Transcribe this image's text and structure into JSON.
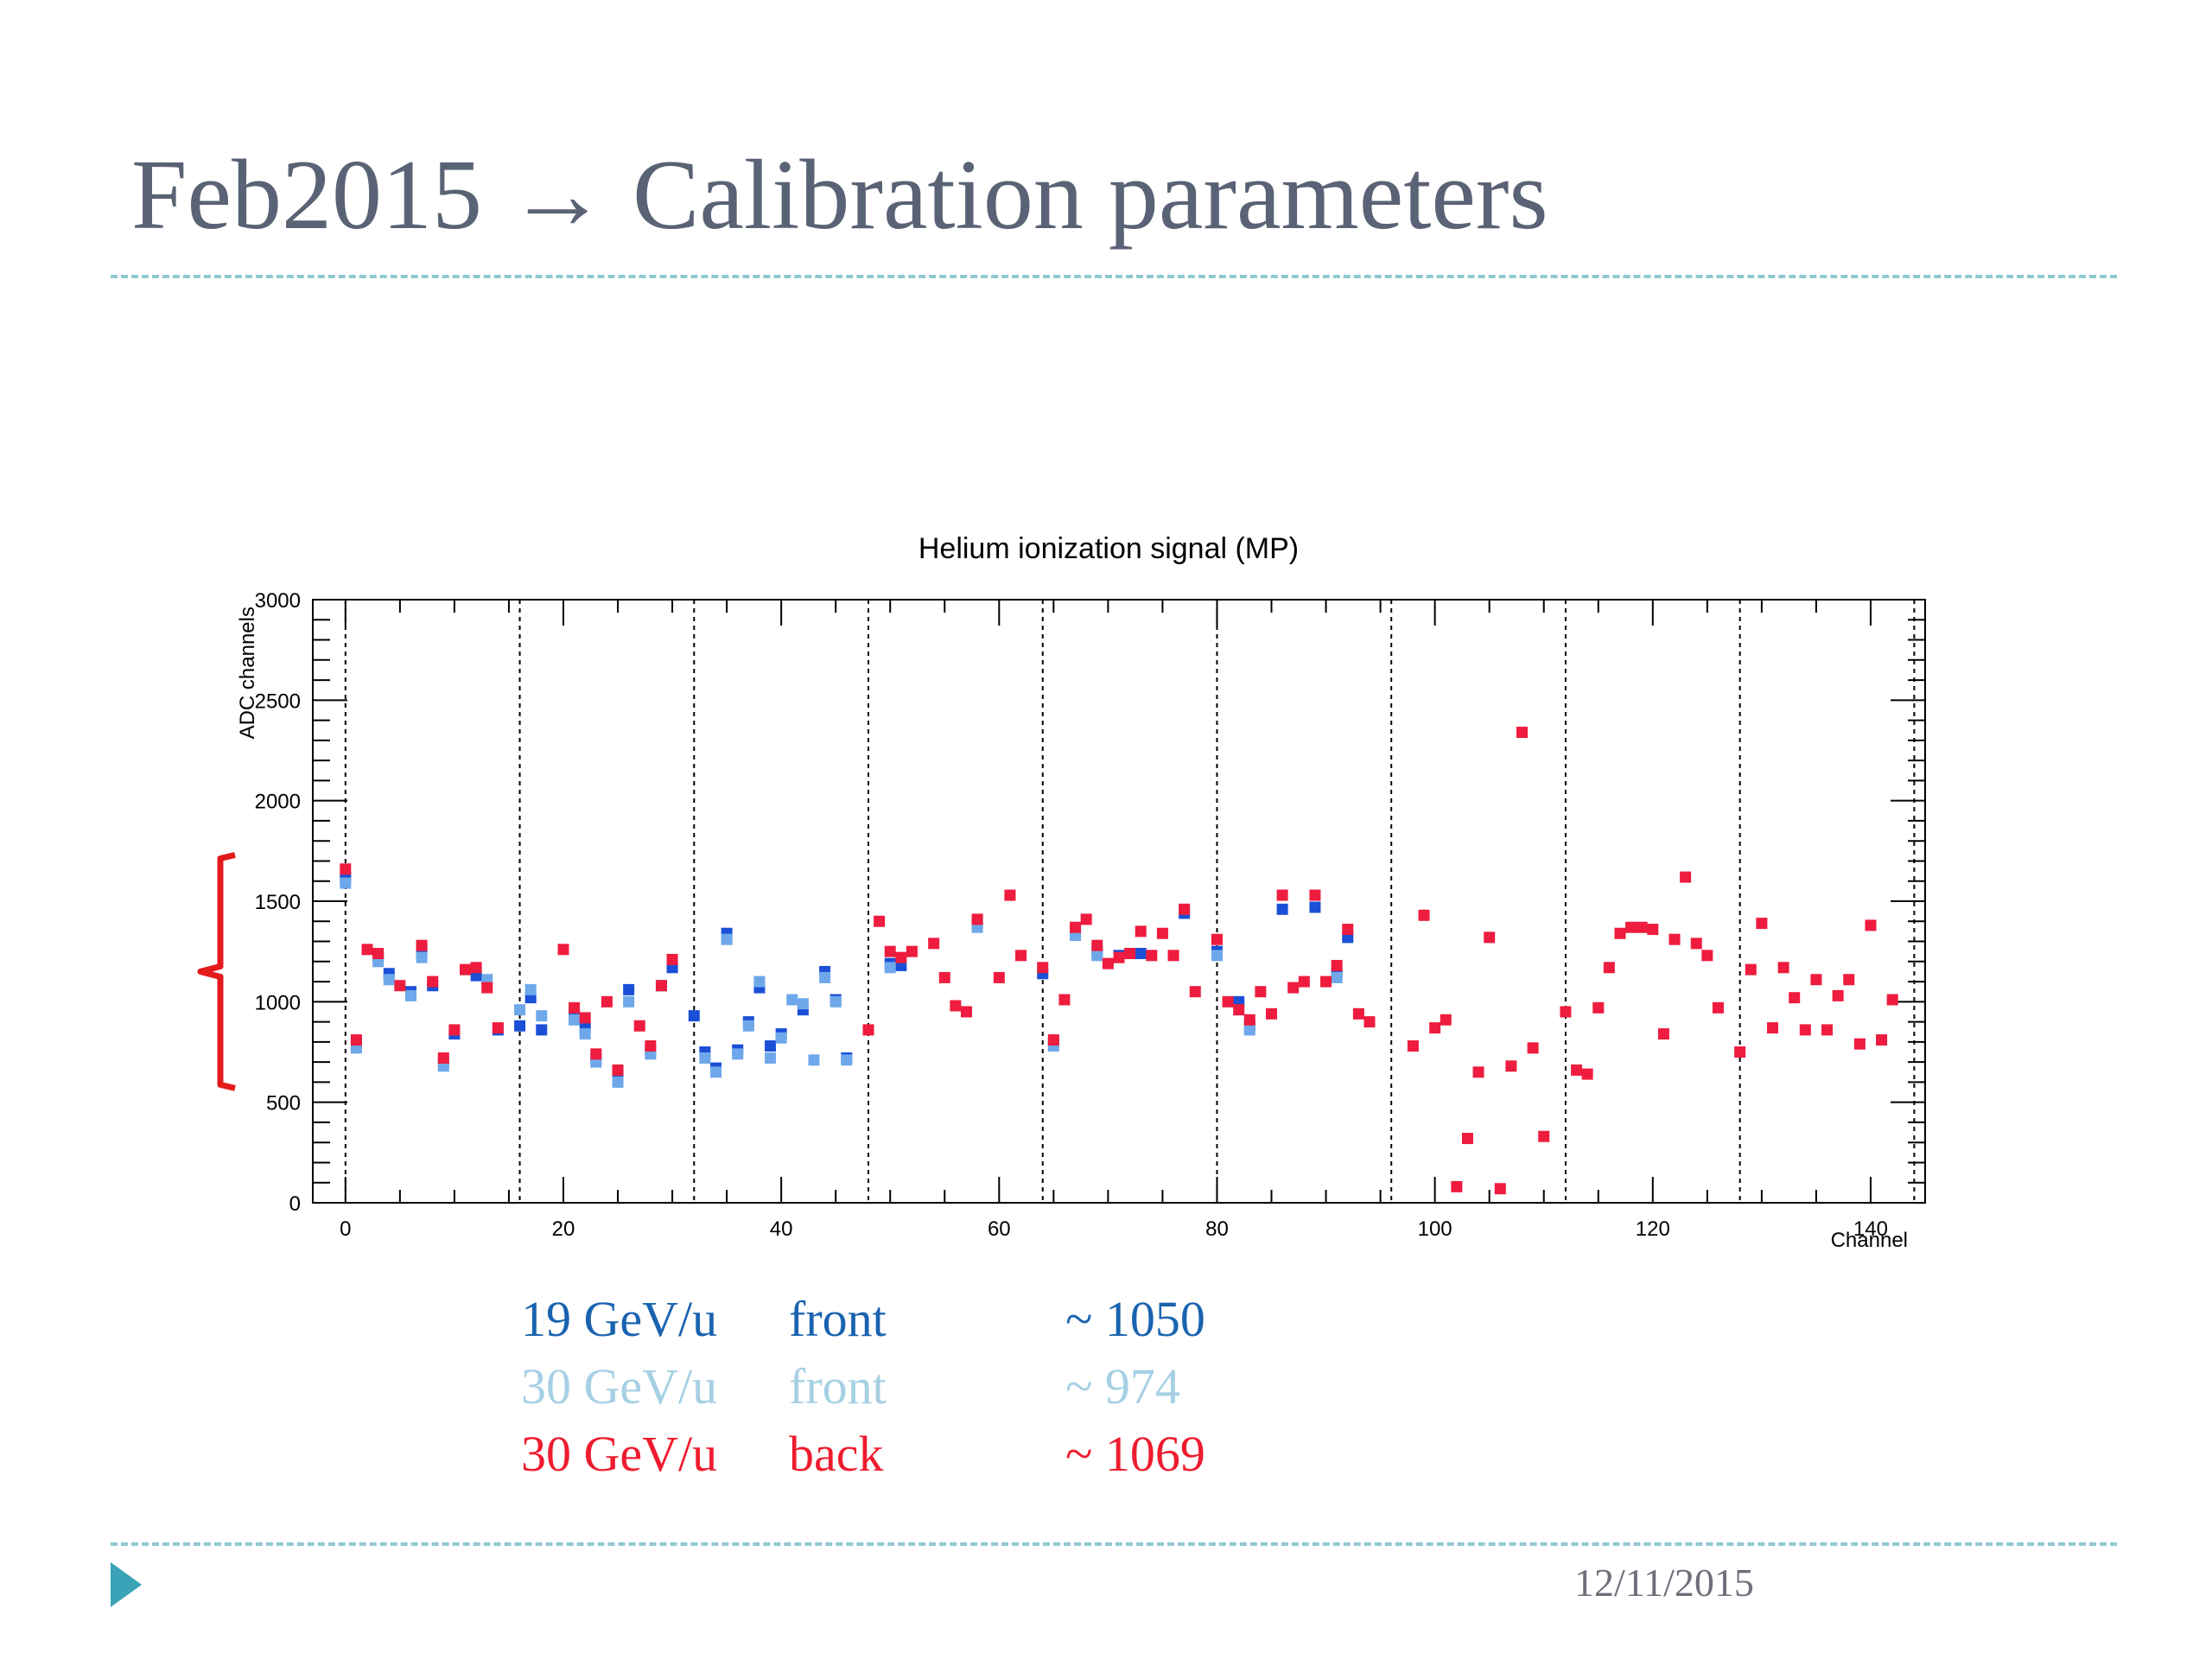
{
  "slide": {
    "title": "Feb2015 → Calibration parameters",
    "date": "12/11/2015"
  },
  "legend": [
    {
      "label": "19 GeV/u",
      "side": "front",
      "value": "~ 1050",
      "color": "#1a63b0"
    },
    {
      "label": "30 GeV/u",
      "side": "front",
      "value": "~ 974",
      "color": "#a6d0e4"
    },
    {
      "label": "30 GeV/u",
      "side": "back",
      "value": "~ 1069",
      "color": "#ee1c2e"
    }
  ],
  "chart_data": {
    "type": "scatter",
    "title": "Helium ionization signal (MP)",
    "xlabel": "Channel",
    "ylabel": "ADC channels",
    "xlim": [
      -3,
      145
    ],
    "ylim": [
      0,
      3000
    ],
    "x_ticks": [
      0,
      20,
      40,
      60,
      80,
      100,
      120,
      140
    ],
    "y_ticks": [
      0,
      500,
      1000,
      1500,
      2000,
      2500,
      3000
    ],
    "group_boundaries": [
      0,
      16,
      32,
      48,
      64,
      80,
      96,
      112,
      128,
      144
    ],
    "bracket_range": [
      570,
      1730
    ],
    "series": [
      {
        "color": "#1a4fd6",
        "points": [
          [
            0,
            1620
          ],
          [
            1,
            790
          ],
          [
            3,
            1230
          ],
          [
            4,
            1140
          ],
          [
            6,
            1050
          ],
          [
            7,
            1250
          ],
          [
            8,
            1080
          ],
          [
            9,
            700
          ],
          [
            10,
            840
          ],
          [
            12,
            1130
          ],
          [
            14,
            860
          ],
          [
            16,
            880
          ],
          [
            17,
            1020
          ],
          [
            18,
            860
          ],
          [
            21,
            940
          ],
          [
            22,
            870
          ],
          [
            23,
            720
          ],
          [
            25,
            630
          ],
          [
            26,
            1060
          ],
          [
            28,
            760
          ],
          [
            29,
            1080
          ],
          [
            30,
            1170
          ],
          [
            32,
            930
          ],
          [
            33,
            750
          ],
          [
            34,
            670
          ],
          [
            35,
            1340
          ],
          [
            36,
            760
          ],
          [
            37,
            900
          ],
          [
            38,
            1070
          ],
          [
            39,
            780
          ],
          [
            40,
            840
          ],
          [
            42,
            960
          ],
          [
            44,
            1150
          ],
          [
            45,
            1010
          ],
          [
            46,
            720
          ],
          [
            50,
            1190
          ],
          [
            51,
            1180
          ],
          [
            58,
            1390
          ],
          [
            64,
            1140
          ],
          [
            65,
            800
          ],
          [
            67,
            1350
          ],
          [
            69,
            1250
          ],
          [
            71,
            1230
          ],
          [
            73,
            1240
          ],
          [
            77,
            1440
          ],
          [
            80,
            1250
          ],
          [
            82,
            1000
          ],
          [
            83,
            880
          ],
          [
            86,
            1460
          ],
          [
            89,
            1470
          ],
          [
            91,
            1150
          ],
          [
            92,
            1320
          ]
        ]
      },
      {
        "color": "#6fa8ea",
        "points": [
          [
            0,
            1590
          ],
          [
            1,
            770
          ],
          [
            3,
            1200
          ],
          [
            4,
            1110
          ],
          [
            6,
            1030
          ],
          [
            7,
            1220
          ],
          [
            9,
            680
          ],
          [
            13,
            1110
          ],
          [
            16,
            960
          ],
          [
            17,
            1060
          ],
          [
            18,
            930
          ],
          [
            21,
            910
          ],
          [
            22,
            840
          ],
          [
            23,
            700
          ],
          [
            25,
            600
          ],
          [
            26,
            1000
          ],
          [
            28,
            740
          ],
          [
            33,
            720
          ],
          [
            34,
            650
          ],
          [
            35,
            1310
          ],
          [
            36,
            740
          ],
          [
            37,
            880
          ],
          [
            38,
            1100
          ],
          [
            39,
            720
          ],
          [
            40,
            820
          ],
          [
            41,
            1010
          ],
          [
            42,
            990
          ],
          [
            43,
            710
          ],
          [
            44,
            1120
          ],
          [
            45,
            1000
          ],
          [
            46,
            710
          ],
          [
            50,
            1170
          ],
          [
            58,
            1370
          ],
          [
            65,
            780
          ],
          [
            67,
            1330
          ],
          [
            69,
            1230
          ],
          [
            80,
            1230
          ],
          [
            83,
            860
          ],
          [
            91,
            1120
          ]
        ]
      },
      {
        "color": "#ee1c3e",
        "points": [
          [
            0,
            1660
          ],
          [
            1,
            810
          ],
          [
            2,
            1260
          ],
          [
            3,
            1240
          ],
          [
            5,
            1080
          ],
          [
            7,
            1280
          ],
          [
            8,
            1100
          ],
          [
            9,
            720
          ],
          [
            10,
            860
          ],
          [
            11,
            1160
          ],
          [
            12,
            1170
          ],
          [
            13,
            1070
          ],
          [
            14,
            870
          ],
          [
            20,
            1260
          ],
          [
            21,
            970
          ],
          [
            22,
            920
          ],
          [
            23,
            740
          ],
          [
            24,
            1000
          ],
          [
            25,
            660
          ],
          [
            27,
            880
          ],
          [
            28,
            780
          ],
          [
            29,
            1080
          ],
          [
            30,
            1210
          ],
          [
            48,
            860
          ],
          [
            49,
            1400
          ],
          [
            50,
            1250
          ],
          [
            51,
            1220
          ],
          [
            52,
            1250
          ],
          [
            54,
            1290
          ],
          [
            55,
            1120
          ],
          [
            56,
            980
          ],
          [
            57,
            950
          ],
          [
            58,
            1410
          ],
          [
            60,
            1120
          ],
          [
            61,
            1530
          ],
          [
            62,
            1230
          ],
          [
            64,
            1170
          ],
          [
            65,
            810
          ],
          [
            66,
            1010
          ],
          [
            67,
            1370
          ],
          [
            68,
            1410
          ],
          [
            69,
            1280
          ],
          [
            70,
            1190
          ],
          [
            71,
            1220
          ],
          [
            72,
            1240
          ],
          [
            73,
            1350
          ],
          [
            74,
            1230
          ],
          [
            75,
            1340
          ],
          [
            76,
            1230
          ],
          [
            77,
            1460
          ],
          [
            78,
            1050
          ],
          [
            80,
            1310
          ],
          [
            81,
            1000
          ],
          [
            82,
            960
          ],
          [
            83,
            910
          ],
          [
            84,
            1050
          ],
          [
            85,
            940
          ],
          [
            86,
            1530
          ],
          [
            87,
            1070
          ],
          [
            88,
            1100
          ],
          [
            89,
            1530
          ],
          [
            90,
            1100
          ],
          [
            91,
            1180
          ],
          [
            92,
            1360
          ],
          [
            93,
            940
          ],
          [
            94,
            900
          ],
          [
            98,
            780
          ],
          [
            99,
            1430
          ],
          [
            100,
            870
          ],
          [
            101,
            910
          ],
          [
            102,
            80
          ],
          [
            103,
            320
          ],
          [
            104,
            650
          ],
          [
            105,
            1320
          ],
          [
            106,
            70
          ],
          [
            107,
            680
          ],
          [
            108,
            2340
          ],
          [
            109,
            770
          ],
          [
            110,
            330
          ],
          [
            112,
            950
          ],
          [
            113,
            660
          ],
          [
            114,
            640
          ],
          [
            115,
            970
          ],
          [
            116,
            1170
          ],
          [
            117,
            1340
          ],
          [
            118,
            1370
          ],
          [
            119,
            1370
          ],
          [
            120,
            1360
          ],
          [
            121,
            840
          ],
          [
            122,
            1310
          ],
          [
            123,
            1620
          ],
          [
            124,
            1290
          ],
          [
            125,
            1230
          ],
          [
            126,
            970
          ],
          [
            128,
            750
          ],
          [
            129,
            1160
          ],
          [
            130,
            1390
          ],
          [
            131,
            870
          ],
          [
            132,
            1170
          ],
          [
            133,
            1020
          ],
          [
            134,
            860
          ],
          [
            135,
            1110
          ],
          [
            136,
            860
          ],
          [
            137,
            1030
          ],
          [
            138,
            1110
          ],
          [
            139,
            790
          ],
          [
            140,
            1380
          ],
          [
            141,
            810
          ],
          [
            142,
            1010
          ]
        ]
      }
    ]
  }
}
